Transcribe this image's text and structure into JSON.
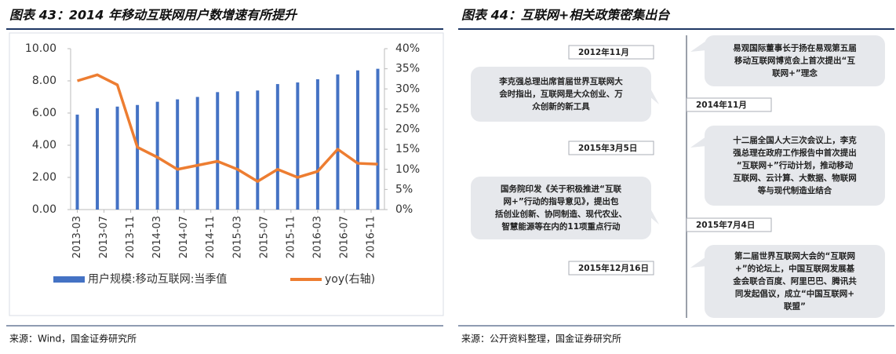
{
  "chart_data": {
    "type": "bar",
    "title": "图表 43：2014 年移动互联网用户数增速有所提升",
    "xlim": [
      "2013-02",
      "2017-01"
    ],
    "xticks": [
      "2013-03",
      "2013-07",
      "2013-11",
      "2014-03",
      "2014-07",
      "2014-11",
      "2015-03",
      "2015-07",
      "2015-11",
      "2016-03",
      "2016-07",
      "2016-11"
    ],
    "ylim": [
      0,
      10
    ],
    "yticks": [
      {
        "value": 0,
        "label": "0.00"
      },
      {
        "value": 2,
        "label": "2.00"
      },
      {
        "value": 4,
        "label": "4.00"
      },
      {
        "value": 6,
        "label": "6.00"
      },
      {
        "value": 8,
        "label": "8.00"
      },
      {
        "value": 10,
        "label": "10.00"
      }
    ],
    "y2lim": [
      0,
      40
    ],
    "y2ticks": [
      {
        "value": 0,
        "label": "0%"
      },
      {
        "value": 5,
        "label": "5%"
      },
      {
        "value": 10,
        "label": "10%"
      },
      {
        "value": 15,
        "label": "15%"
      },
      {
        "value": 20,
        "label": "20%"
      },
      {
        "value": 25,
        "label": "25%"
      },
      {
        "value": 30,
        "label": "30%"
      },
      {
        "value": 35,
        "label": "35%"
      },
      {
        "value": 40,
        "label": "40%"
      }
    ],
    "legend": "bottom",
    "series": [
      {
        "name": "用户规模:移动互联网:当季值",
        "type": "bar",
        "color": "#4472c4",
        "x": [
          "2013-03",
          "2013-06",
          "2013-09",
          "2013-12",
          "2014-03",
          "2014-06",
          "2014-09",
          "2014-12",
          "2015-03",
          "2015-06",
          "2015-09",
          "2015-12",
          "2016-03",
          "2016-06",
          "2016-09",
          "2016-12"
        ],
        "values": [
          5.9,
          6.3,
          6.4,
          6.5,
          6.7,
          6.85,
          7.0,
          7.3,
          7.35,
          7.4,
          7.8,
          7.9,
          8.1,
          8.4,
          8.65,
          8.75
        ]
      },
      {
        "name": "yoy(右轴)",
        "type": "line",
        "axis": "y2",
        "color": "#ed7d31",
        "x": [
          "2013-03",
          "2013-06",
          "2013-09",
          "2013-12",
          "2014-03",
          "2014-06",
          "2014-09",
          "2014-12",
          "2015-03",
          "2015-06",
          "2015-09",
          "2015-12",
          "2016-03",
          "2016-06",
          "2016-09",
          "2016-12"
        ],
        "values": [
          32,
          33.5,
          31,
          15.5,
          13,
          10,
          11,
          12,
          10,
          7,
          10,
          8,
          9.5,
          15,
          11.5,
          11.3
        ]
      }
    ]
  },
  "chart_source": "来源：Wind，国金证券研究所",
  "timeline": {
    "title": "图表 44：互联网+相关政策密集出台",
    "source": "来源：公开资料整理，国金证券研究所",
    "events": [
      {
        "date": "2012年11月",
        "lines": [
          "易观国际董事长于扬在易观第五届",
          "移动互联网博览会上首次提出“互",
          "联网+”理念"
        ]
      },
      {
        "date": "2014年11月",
        "lines": [
          "李克强总理出席首届世界互联网大",
          "会时指出，互联网是大众创业、万",
          "众创新的新工具"
        ]
      },
      {
        "date": "2015年3月5日",
        "lines": [
          "十二届全国人大三次会议上，李克",
          "强总理在政府工作报告中首次提出",
          "“互联网+”行动计划，推动移动",
          "互联网、云计算、大数据、物联网",
          "等与现代制造业结合"
        ]
      },
      {
        "date": "2015年7月4日",
        "lines": [
          "国务院印发《关于积极推进“互联",
          "网+”行动的指导意见》，提出包",
          "括创业创新、协同制造、现代农业、",
          "智慧能源等在内的11项重点行动"
        ]
      },
      {
        "date": "2015年12月16日",
        "lines": [
          "第二届世界互联网大会的“互联网",
          "+”的论坛上，中国互联网发展基",
          "金会联合百度、阿里巴巴、腾讯共",
          "同发起倡议，成立“中国互联网+",
          "联盟”"
        ]
      }
    ]
  }
}
